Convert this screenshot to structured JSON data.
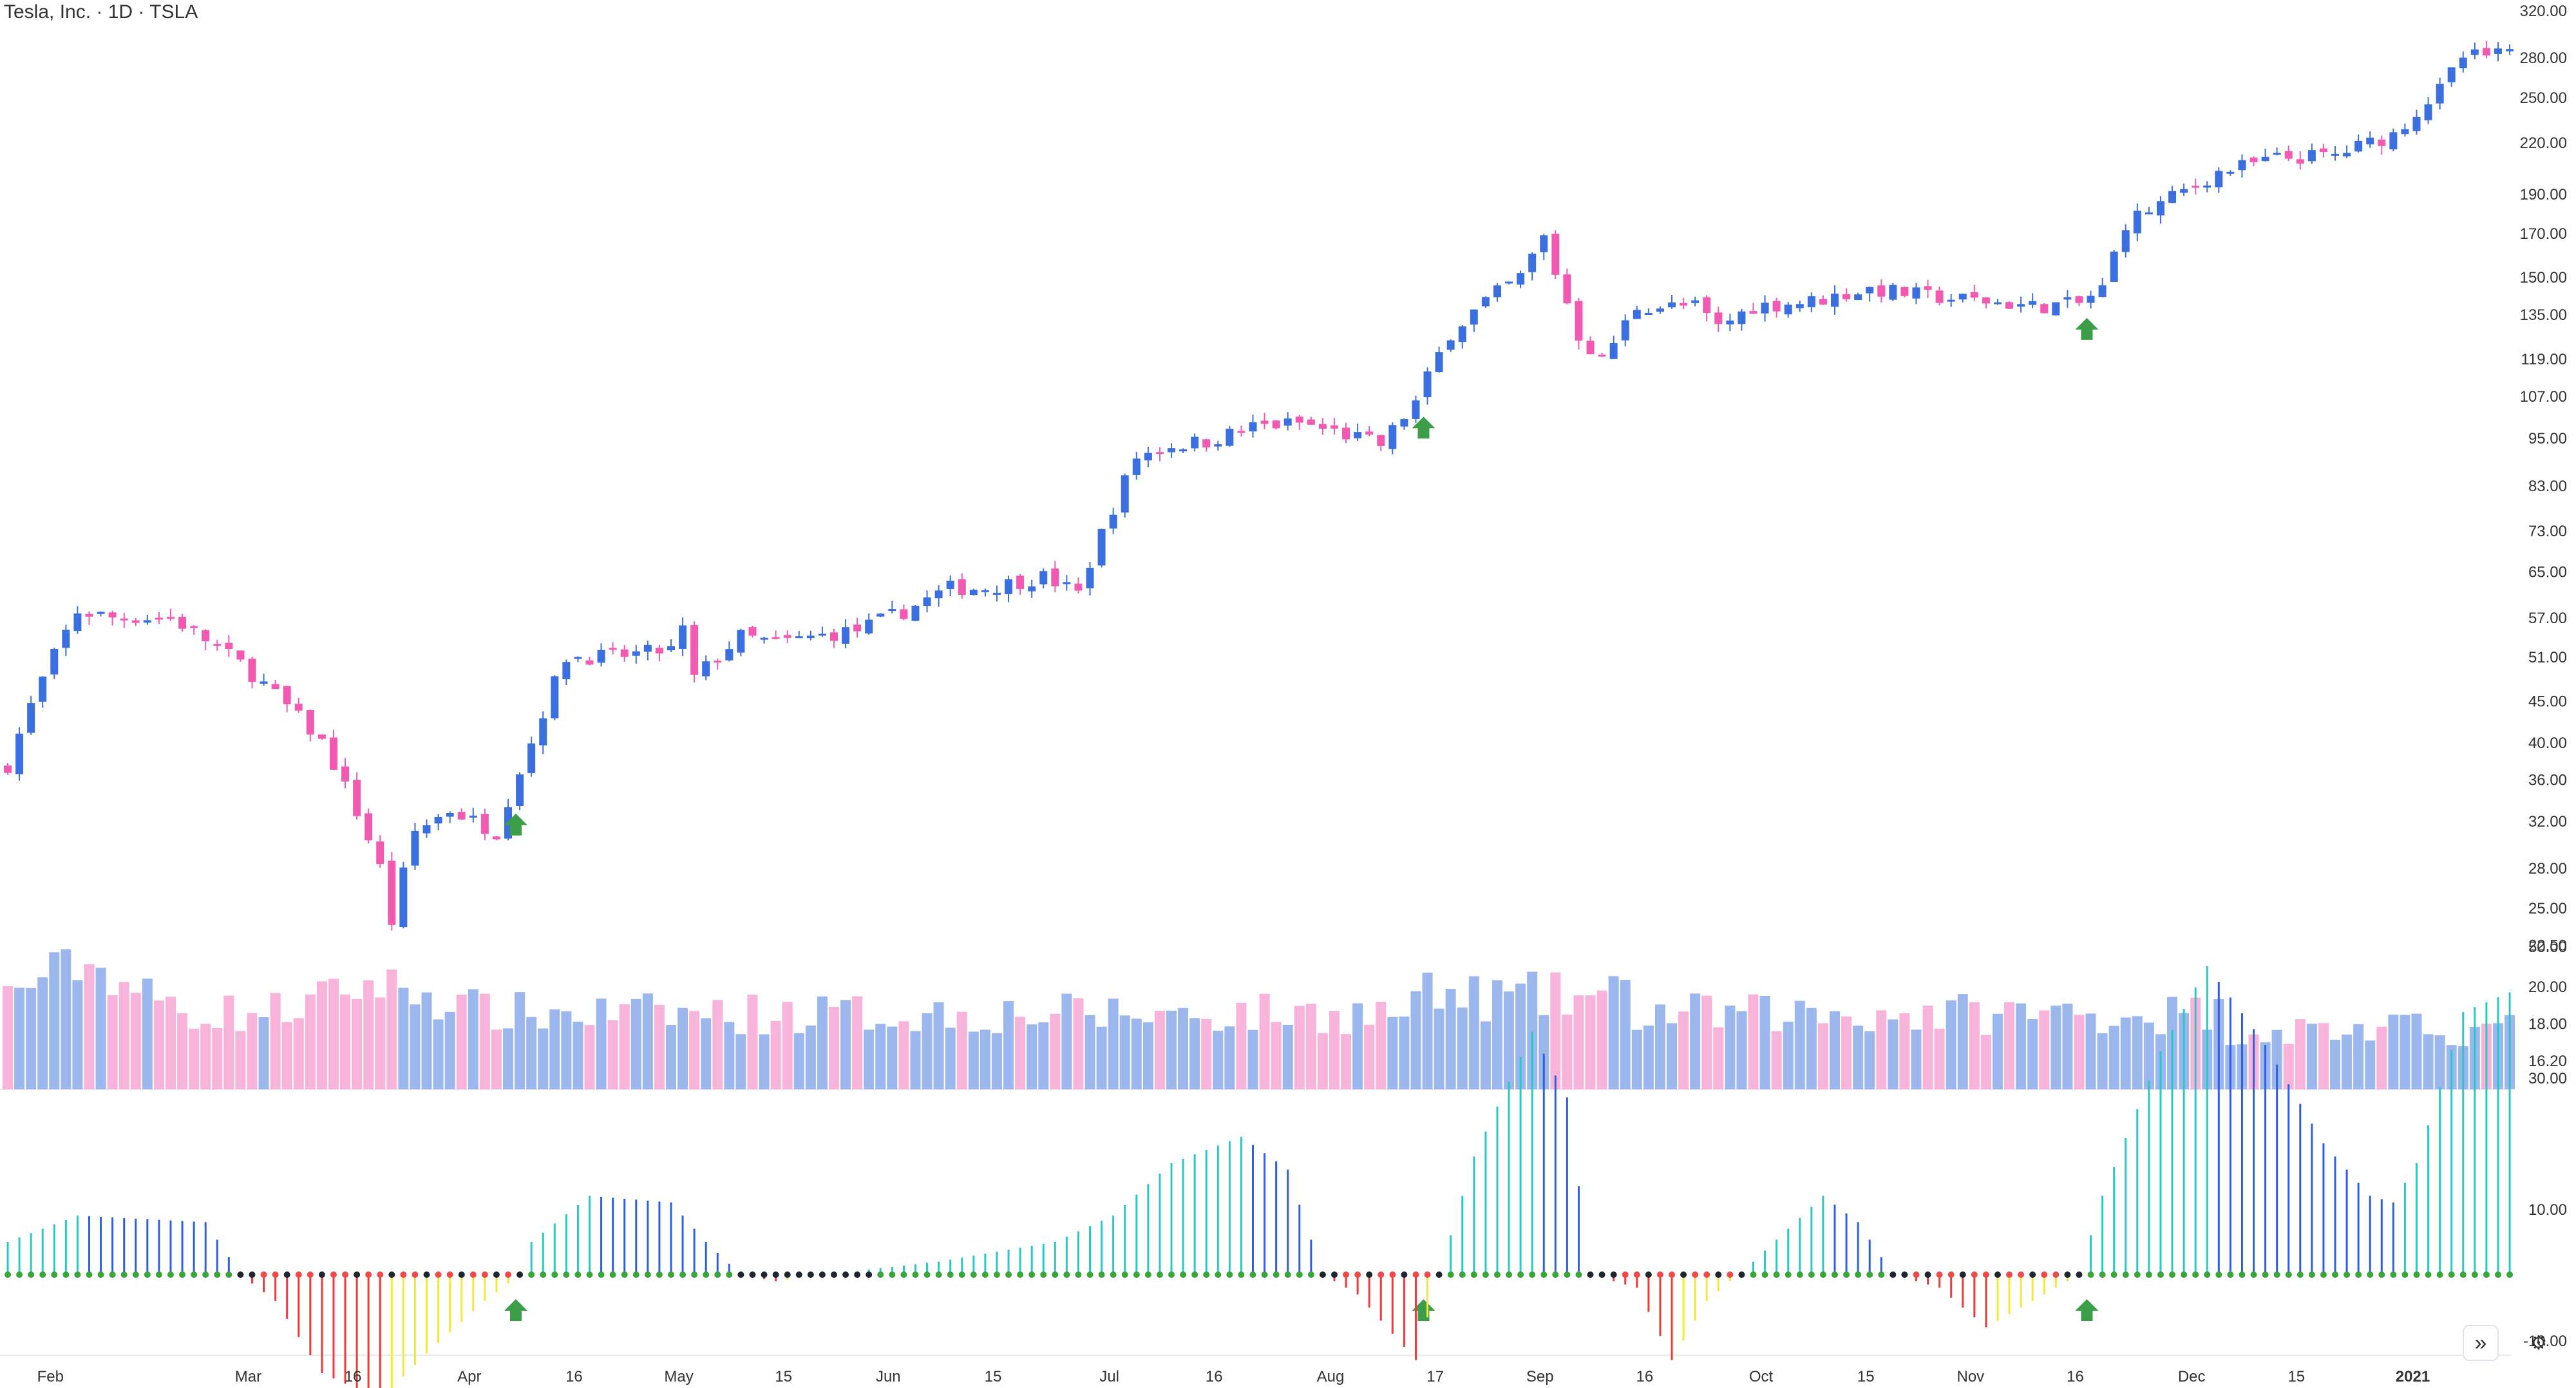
{
  "title": "Tesla, Inc. · 1D · TSLA",
  "nav_icon": "double-chevron-right-icon",
  "nav_symbol": "»",
  "settings_icon": "gear-icon",
  "settings_symbol": "⚙",
  "colors": {
    "up": "#3b6fe0",
    "down": "#f25ab2",
    "vol_up": "#9cb6ee",
    "vol_down": "#f7b3d9",
    "arrow": "#3d9e4a",
    "axis_text": "#333333",
    "osc_cyan": "#29c7c7",
    "osc_blue": "#2f5fe0",
    "osc_red": "#f03a3a",
    "osc_yellow": "#f5e63b",
    "dot_green": "#3aa63a",
    "dot_black": "#1f2630",
    "dot_red": "#f04a4a"
  },
  "chart_data": [
    {
      "type": "candlestick",
      "title": "Tesla, Inc. · 1D · TSLA",
      "scale": "log",
      "ylim": [
        16.2,
        320
      ],
      "y_ticks": [
        "320.00",
        "280.00",
        "250.00",
        "220.00",
        "190.00",
        "170.00",
        "150.00",
        "135.00",
        "119.00",
        "107.00",
        "95.00",
        "83.00",
        "73.00",
        "65.00",
        "57.00",
        "51.00",
        "45.00",
        "40.00",
        "36.00",
        "32.00",
        "28.00",
        "25.00",
        "22.50",
        "20.00",
        "18.00",
        "16.20"
      ],
      "x_ticks": [
        "Feb",
        "Mar",
        "16",
        "Apr",
        "16",
        "May",
        "15",
        "Jun",
        "15",
        "Jul",
        "16",
        "Aug",
        "17",
        "Sep",
        "16",
        "Oct",
        "15",
        "Nov",
        "16",
        "Dec",
        "15",
        "2021"
      ],
      "x_tick_positions": [
        4,
        21,
        30,
        40,
        49,
        58,
        67,
        76,
        85,
        95,
        104,
        114,
        123,
        132,
        141,
        151,
        160,
        169,
        178,
        188,
        197,
        207
      ],
      "close_anchors": [
        [
          0,
          37.5
        ],
        [
          6,
          58
        ],
        [
          9,
          57
        ],
        [
          14,
          57
        ],
        [
          20,
          50
        ],
        [
          27,
          40
        ],
        [
          32,
          28
        ],
        [
          33,
          24
        ],
        [
          35,
          31
        ],
        [
          38,
          33
        ],
        [
          42,
          31
        ],
        [
          45,
          40
        ],
        [
          48,
          51
        ],
        [
          52,
          51
        ],
        [
          57,
          52
        ],
        [
          58,
          55
        ],
        [
          59,
          48
        ],
        [
          63,
          54
        ],
        [
          66,
          53
        ],
        [
          73,
          55
        ],
        [
          77,
          58
        ],
        [
          81,
          62
        ],
        [
          84,
          62
        ],
        [
          89,
          64
        ],
        [
          92,
          61
        ],
        [
          95,
          78
        ],
        [
          97,
          90
        ],
        [
          100,
          93
        ],
        [
          103,
          94
        ],
        [
          107,
          98
        ],
        [
          111,
          99
        ],
        [
          116,
          95
        ],
        [
          118,
          93
        ],
        [
          121,
          105
        ],
        [
          124,
          128
        ],
        [
          127,
          140
        ],
        [
          130,
          150
        ],
        [
          132,
          168
        ],
        [
          133,
          152
        ],
        [
          135,
          127
        ],
        [
          137,
          118
        ],
        [
          140,
          138
        ],
        [
          145,
          138
        ],
        [
          147,
          130
        ],
        [
          150,
          138
        ],
        [
          155,
          140
        ],
        [
          160,
          145
        ],
        [
          165,
          142
        ],
        [
          170,
          140
        ],
        [
          174,
          138
        ],
        [
          178,
          139
        ],
        [
          180,
          145
        ],
        [
          182,
          175
        ],
        [
          186,
          188
        ],
        [
          190,
          202
        ],
        [
          195,
          210
        ],
        [
          200,
          212
        ],
        [
          205,
          225
        ],
        [
          209,
          255
        ],
        [
          211,
          280
        ],
        [
          215,
          282
        ]
      ],
      "candle_count": 216,
      "arrows_at": [
        43,
        121,
        178
      ],
      "volume_visible": true
    },
    {
      "type": "histogram",
      "series_name": "",
      "ylim": [
        -18,
        50
      ],
      "y_ticks": [
        "50.00",
        "30.00",
        "10.00",
        "-10.00"
      ],
      "x_ticks": [
        "Feb",
        "Mar",
        "16",
        "Apr",
        "16",
        "May",
        "15",
        "Jun",
        "15",
        "Jul",
        "16",
        "Aug",
        "17",
        "Sep",
        "16",
        "Oct",
        "15",
        "Nov",
        "16",
        "Dec",
        "15",
        "2021"
      ],
      "value_anchors": [
        [
          0,
          5
        ],
        [
          6,
          9
        ],
        [
          17,
          8
        ],
        [
          20,
          0
        ],
        [
          23,
          -4
        ],
        [
          27,
          -15
        ],
        [
          32,
          -19
        ],
        [
          36,
          -12
        ],
        [
          41,
          -4
        ],
        [
          44,
          0
        ],
        [
          45,
          5
        ],
        [
          50,
          12
        ],
        [
          57,
          11
        ],
        [
          60,
          5
        ],
        [
          63,
          0
        ],
        [
          66,
          -1
        ],
        [
          70,
          0
        ],
        [
          80,
          2
        ],
        [
          90,
          5
        ],
        [
          95,
          9
        ],
        [
          100,
          17
        ],
        [
          106,
          21
        ],
        [
          110,
          16
        ],
        [
          113,
          0
        ],
        [
          116,
          -3
        ],
        [
          118,
          -7
        ],
        [
          121,
          -13
        ],
        [
          123,
          0
        ],
        [
          126,
          18
        ],
        [
          131,
          37
        ],
        [
          134,
          27
        ],
        [
          136,
          0
        ],
        [
          140,
          -2
        ],
        [
          143,
          -13
        ],
        [
          146,
          -4
        ],
        [
          150,
          2
        ],
        [
          156,
          12
        ],
        [
          159,
          8
        ],
        [
          162,
          0
        ],
        [
          166,
          -2
        ],
        [
          170,
          -8
        ],
        [
          174,
          -4
        ],
        [
          178,
          0
        ],
        [
          180,
          12
        ],
        [
          185,
          34
        ],
        [
          189,
          47
        ],
        [
          194,
          35
        ],
        [
          199,
          20
        ],
        [
          203,
          12
        ],
        [
          205,
          11
        ],
        [
          207,
          17
        ],
        [
          211,
          40
        ],
        [
          215,
          43
        ]
      ],
      "dots_visible": true,
      "arrows_at": [
        43,
        121,
        178
      ]
    }
  ]
}
